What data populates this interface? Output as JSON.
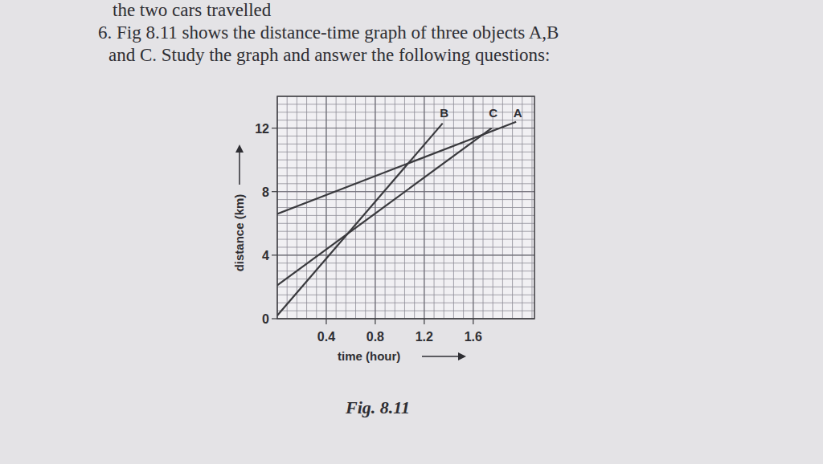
{
  "header": {
    "lines": [
      "the two cars travelled",
      "6. Fig 8.11 shows the distance-time graph of three objects A,B",
      "and C. Study the graph and answer the following questions:"
    ]
  },
  "chart_data": {
    "type": "line",
    "x_label": "time (hour)",
    "y_label": "distance (km)",
    "xlim": [
      0,
      2.1
    ],
    "ylim": [
      0,
      14
    ],
    "xticks": [
      0.4,
      0.8,
      1.2,
      1.6
    ],
    "yticks": [
      0,
      4,
      8,
      12
    ],
    "grid": true,
    "series": [
      {
        "name": "A",
        "color": "#3a3a3e",
        "x": [
          0,
          1.95
        ],
        "values": [
          6.6,
          12.4
        ]
      },
      {
        "name": "B",
        "color": "#3a3a3e",
        "x": [
          0,
          1.35
        ],
        "values": [
          0.2,
          12.3
        ]
      },
      {
        "name": "C",
        "color": "#3a3a3e",
        "x": [
          0,
          1.75
        ],
        "values": [
          2.1,
          12.0
        ]
      }
    ],
    "caption": "Fig. 8.11"
  }
}
